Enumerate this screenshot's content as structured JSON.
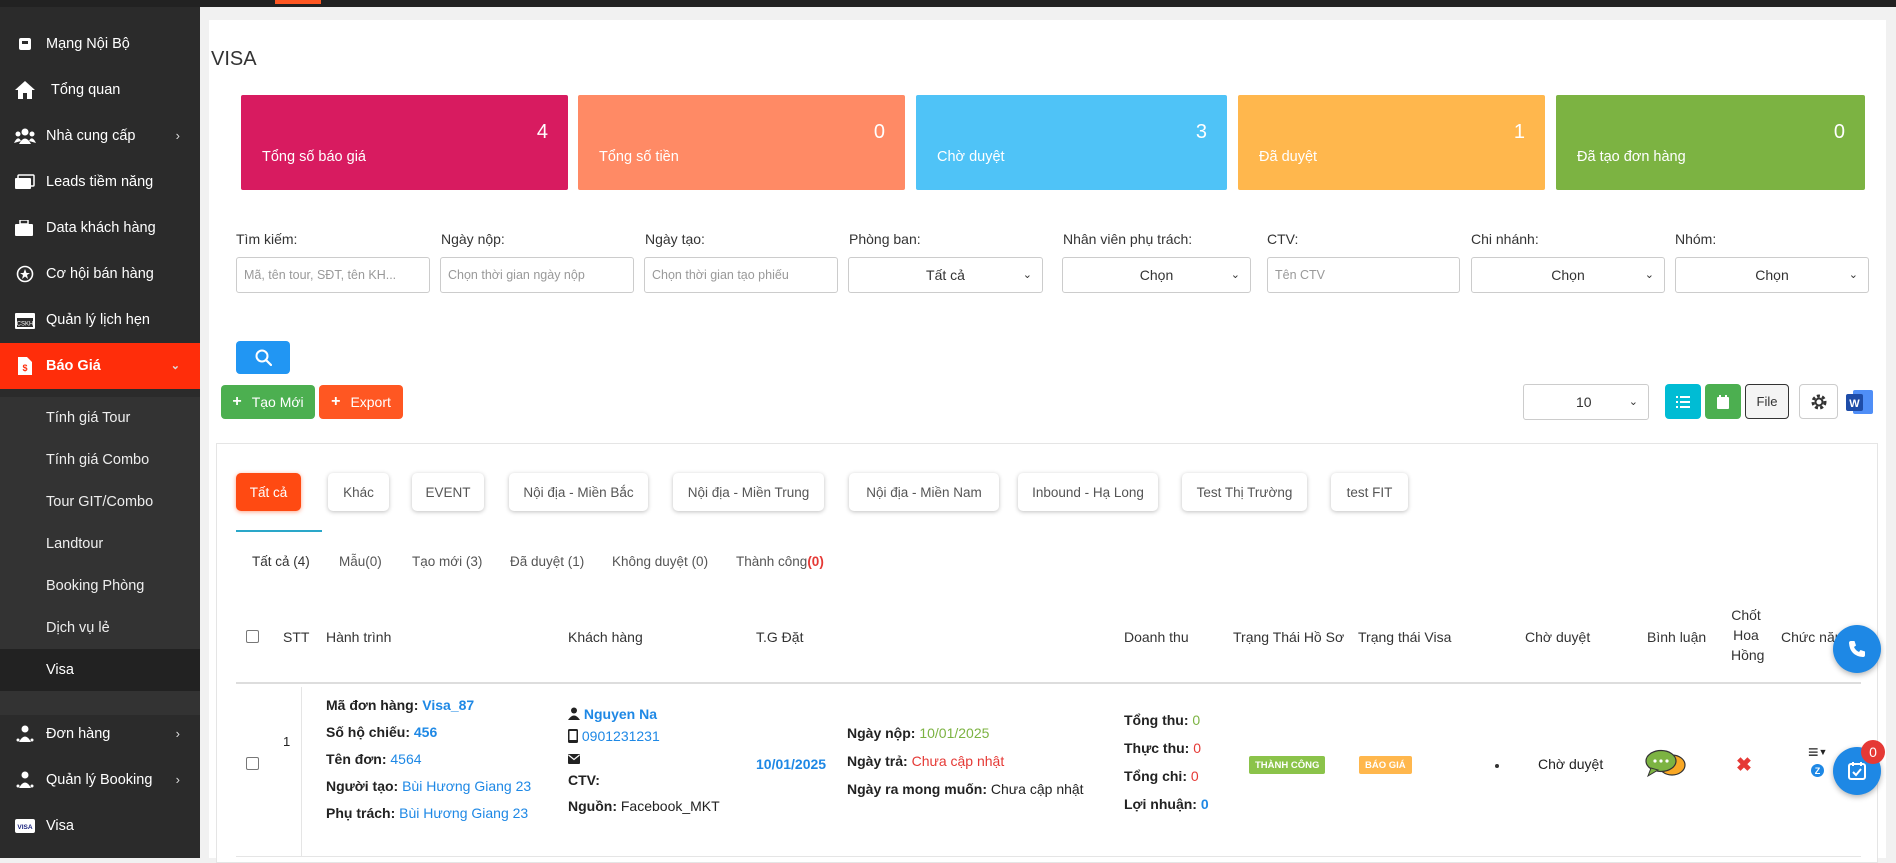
{
  "sidebar": {
    "items": [
      {
        "label": "Mạng Nội Bộ",
        "icon": "intranet-icon"
      },
      {
        "label": "Tổng quan",
        "icon": "home-icon"
      },
      {
        "label": "Nhà cung cấp",
        "icon": "suppliers-icon"
      },
      {
        "label": "Leads tiềm năng",
        "icon": "leads-icon"
      },
      {
        "label": "Data khách hàng",
        "icon": "customer-data-icon"
      },
      {
        "label": "Cơ hội bán hàng",
        "icon": "opportunity-icon"
      },
      {
        "label": "Quản lý lịch hẹn",
        "icon": "appointment-icon"
      },
      {
        "label": "Báo Giá",
        "icon": "quote-icon"
      }
    ],
    "sub_items": [
      "Tính giá Tour",
      "Tính giá Combo",
      "Tour GIT/Combo",
      "Landtour",
      "Booking Phòng",
      "Dịch vụ lẻ",
      "Visa"
    ],
    "bottom_items": [
      {
        "label": "Đơn hàng",
        "icon": "orders-icon"
      },
      {
        "label": "Quản lý Booking",
        "icon": "booking-icon"
      },
      {
        "label": "Visa",
        "icon": "visa-icon"
      }
    ]
  },
  "page": {
    "title": "VISA"
  },
  "stats": [
    {
      "label": "Tổng số báo giá",
      "value": "4",
      "color": "#d81b60"
    },
    {
      "label": "Tổng số tiền",
      "value": "0",
      "color": "#ff8a65"
    },
    {
      "label": "Chờ duyệt",
      "value": "3",
      "color": "#4fc3f7"
    },
    {
      "label": "Đã duyệt",
      "value": "1",
      "color": "#ffb74d"
    },
    {
      "label": "Đã tạo đơn hàng",
      "value": "0",
      "color": "#7cb342"
    }
  ],
  "filters": {
    "search": {
      "label": "Tìm kiếm:",
      "placeholder": "Mã, tên tour, SĐT, tên KH..."
    },
    "submit_date": {
      "label": "Ngày nộp:",
      "placeholder": "Chọn thời gian ngày nộp"
    },
    "created_date": {
      "label": "Ngày tạo:",
      "placeholder": "Chọn thời gian tạo phiếu"
    },
    "department": {
      "label": "Phòng ban:",
      "value": "Tất cả"
    },
    "staff": {
      "label": "Nhân viên phụ trách:",
      "value": "Chọn"
    },
    "ctv": {
      "label": "CTV:",
      "placeholder": "Tên CTV"
    },
    "branch": {
      "label": "Chi nhánh:",
      "value": "Chọn"
    },
    "group": {
      "label": "Nhóm:",
      "value": "Chọn"
    }
  },
  "actions": {
    "create": "Tạo Mới",
    "export": "Export",
    "page_size": "10",
    "file": "File"
  },
  "categories": [
    "Tất cả",
    "Khác",
    "EVENT",
    "Nội địa - Miền Bắc",
    "Nội địa - Miền Trung",
    "Nội địa - Miền Nam",
    "Inbound - Hạ Long",
    "Test Thị Trường",
    "test FIT"
  ],
  "status_tabs": [
    {
      "label": "Tất cả (4)"
    },
    {
      "label": "Mẫu(0)"
    },
    {
      "label": "Tạo mới (3)"
    },
    {
      "label": "Đã duyệt (1)"
    },
    {
      "label": "Không duyệt (0)"
    },
    {
      "label": "Thành công",
      "count": "(0)"
    }
  ],
  "table": {
    "headers": {
      "stt": "STT",
      "itinerary": "Hành trình",
      "customer": "Khách hàng",
      "booked_date": "T.G Đặt",
      "revenue": "Doanh thu",
      "file_status": "Trạng Thái Hồ Sơ",
      "visa_status": "Trạng thái Visa",
      "approval": "Chờ duyệt",
      "comment": "Bình luận",
      "commission_1": "Chốt",
      "commission_2": "Hoa",
      "commission_3": "Hồng",
      "functions": "Chức năng"
    },
    "rows": [
      {
        "stt": "1",
        "order_code_label": "Mã đơn hàng:",
        "order_code": "Visa_87",
        "passport_label": "Số hộ chiếu:",
        "passport": "456",
        "order_name_label": "Tên đơn:",
        "order_name": "4564",
        "creator_label": "Người tạo:",
        "creator": "Bùi Hương Giang 23",
        "owner_label": "Phụ trách:",
        "owner": "Bùi Hương Giang 23",
        "customer_name": "Nguyen Na",
        "customer_phone": "0901231231",
        "ctv_label": "CTV:",
        "source_label": "Nguồn:",
        "source": "Facebook_MKT",
        "booked_date": "10/01/2025",
        "submit_label": "Ngày nộp:",
        "submit": "10/01/2025",
        "return_label": "Ngày trả:",
        "return": "Chưa cập nhật",
        "expected_label": "Ngày ra mong muốn:",
        "expected": "Chưa cập nhật",
        "total_in_label": "Tổng thu:",
        "total_in": "0",
        "actual_in_label": "Thực thu:",
        "actual_in": "0",
        "total_out_label": "Tổng chi:",
        "total_out": "0",
        "profit_label": "Lợi nhuận:",
        "profit": "0",
        "file_status": "THÀNH CÔNG",
        "visa_status": "BÁO GIÁ",
        "approval": "Chờ duyệt"
      }
    ]
  },
  "notifications": {
    "count": "0"
  }
}
